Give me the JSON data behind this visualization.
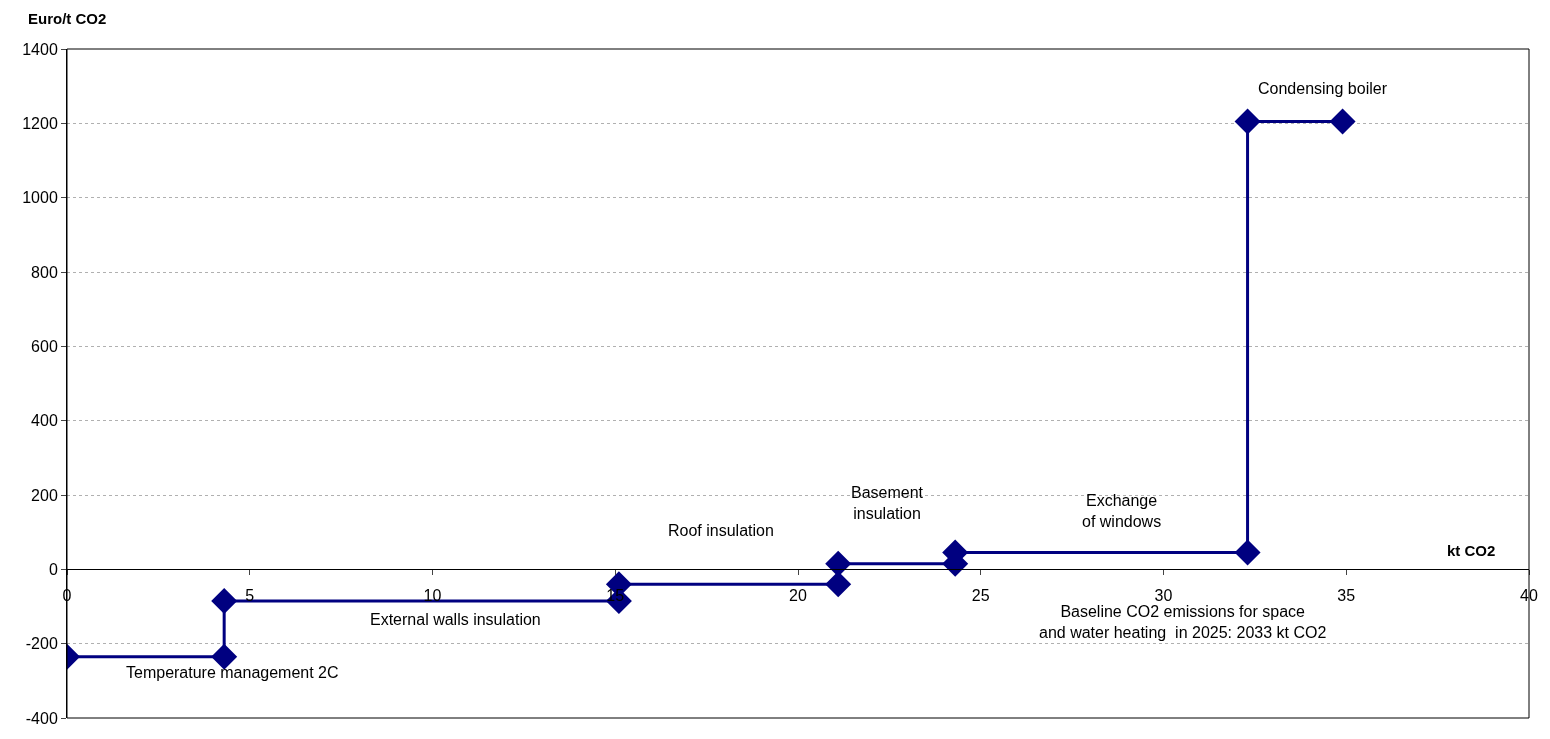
{
  "chart_data": {
    "type": "line",
    "xlabel": "kt CO2",
    "ylabel": "Euro/t CO2",
    "series": [
      {
        "color": "#000080",
        "x": [
          0,
          4.3,
          4.3,
          15.1,
          15.1,
          21.1,
          21.1,
          24.3,
          24.3,
          32.3,
          32.3,
          34.9
        ],
        "values": [
          -235,
          -235,
          -85,
          -85,
          -40,
          -40,
          15,
          15,
          45,
          45,
          1205,
          1205
        ]
      }
    ],
    "marker": "diamond",
    "line_style": "solid",
    "xlim": [
      0,
      40
    ],
    "xticks": [
      0,
      5,
      10,
      15,
      20,
      25,
      30,
      35,
      40
    ],
    "ylim": [
      -400,
      1400
    ],
    "yticks": [
      -400,
      -200,
      0,
      200,
      400,
      600,
      800,
      1000,
      1200,
      1400
    ],
    "grid": "y",
    "annotations": [
      "Temperature management 2C",
      "External walls insulation",
      "Roof insulation",
      "Basement\ninsulation",
      "Exchange\nof windows",
      "Condensing boiler",
      "Baseline CO2 emissions for space\nand water heating  in 2025: 2033 kt CO2"
    ]
  }
}
